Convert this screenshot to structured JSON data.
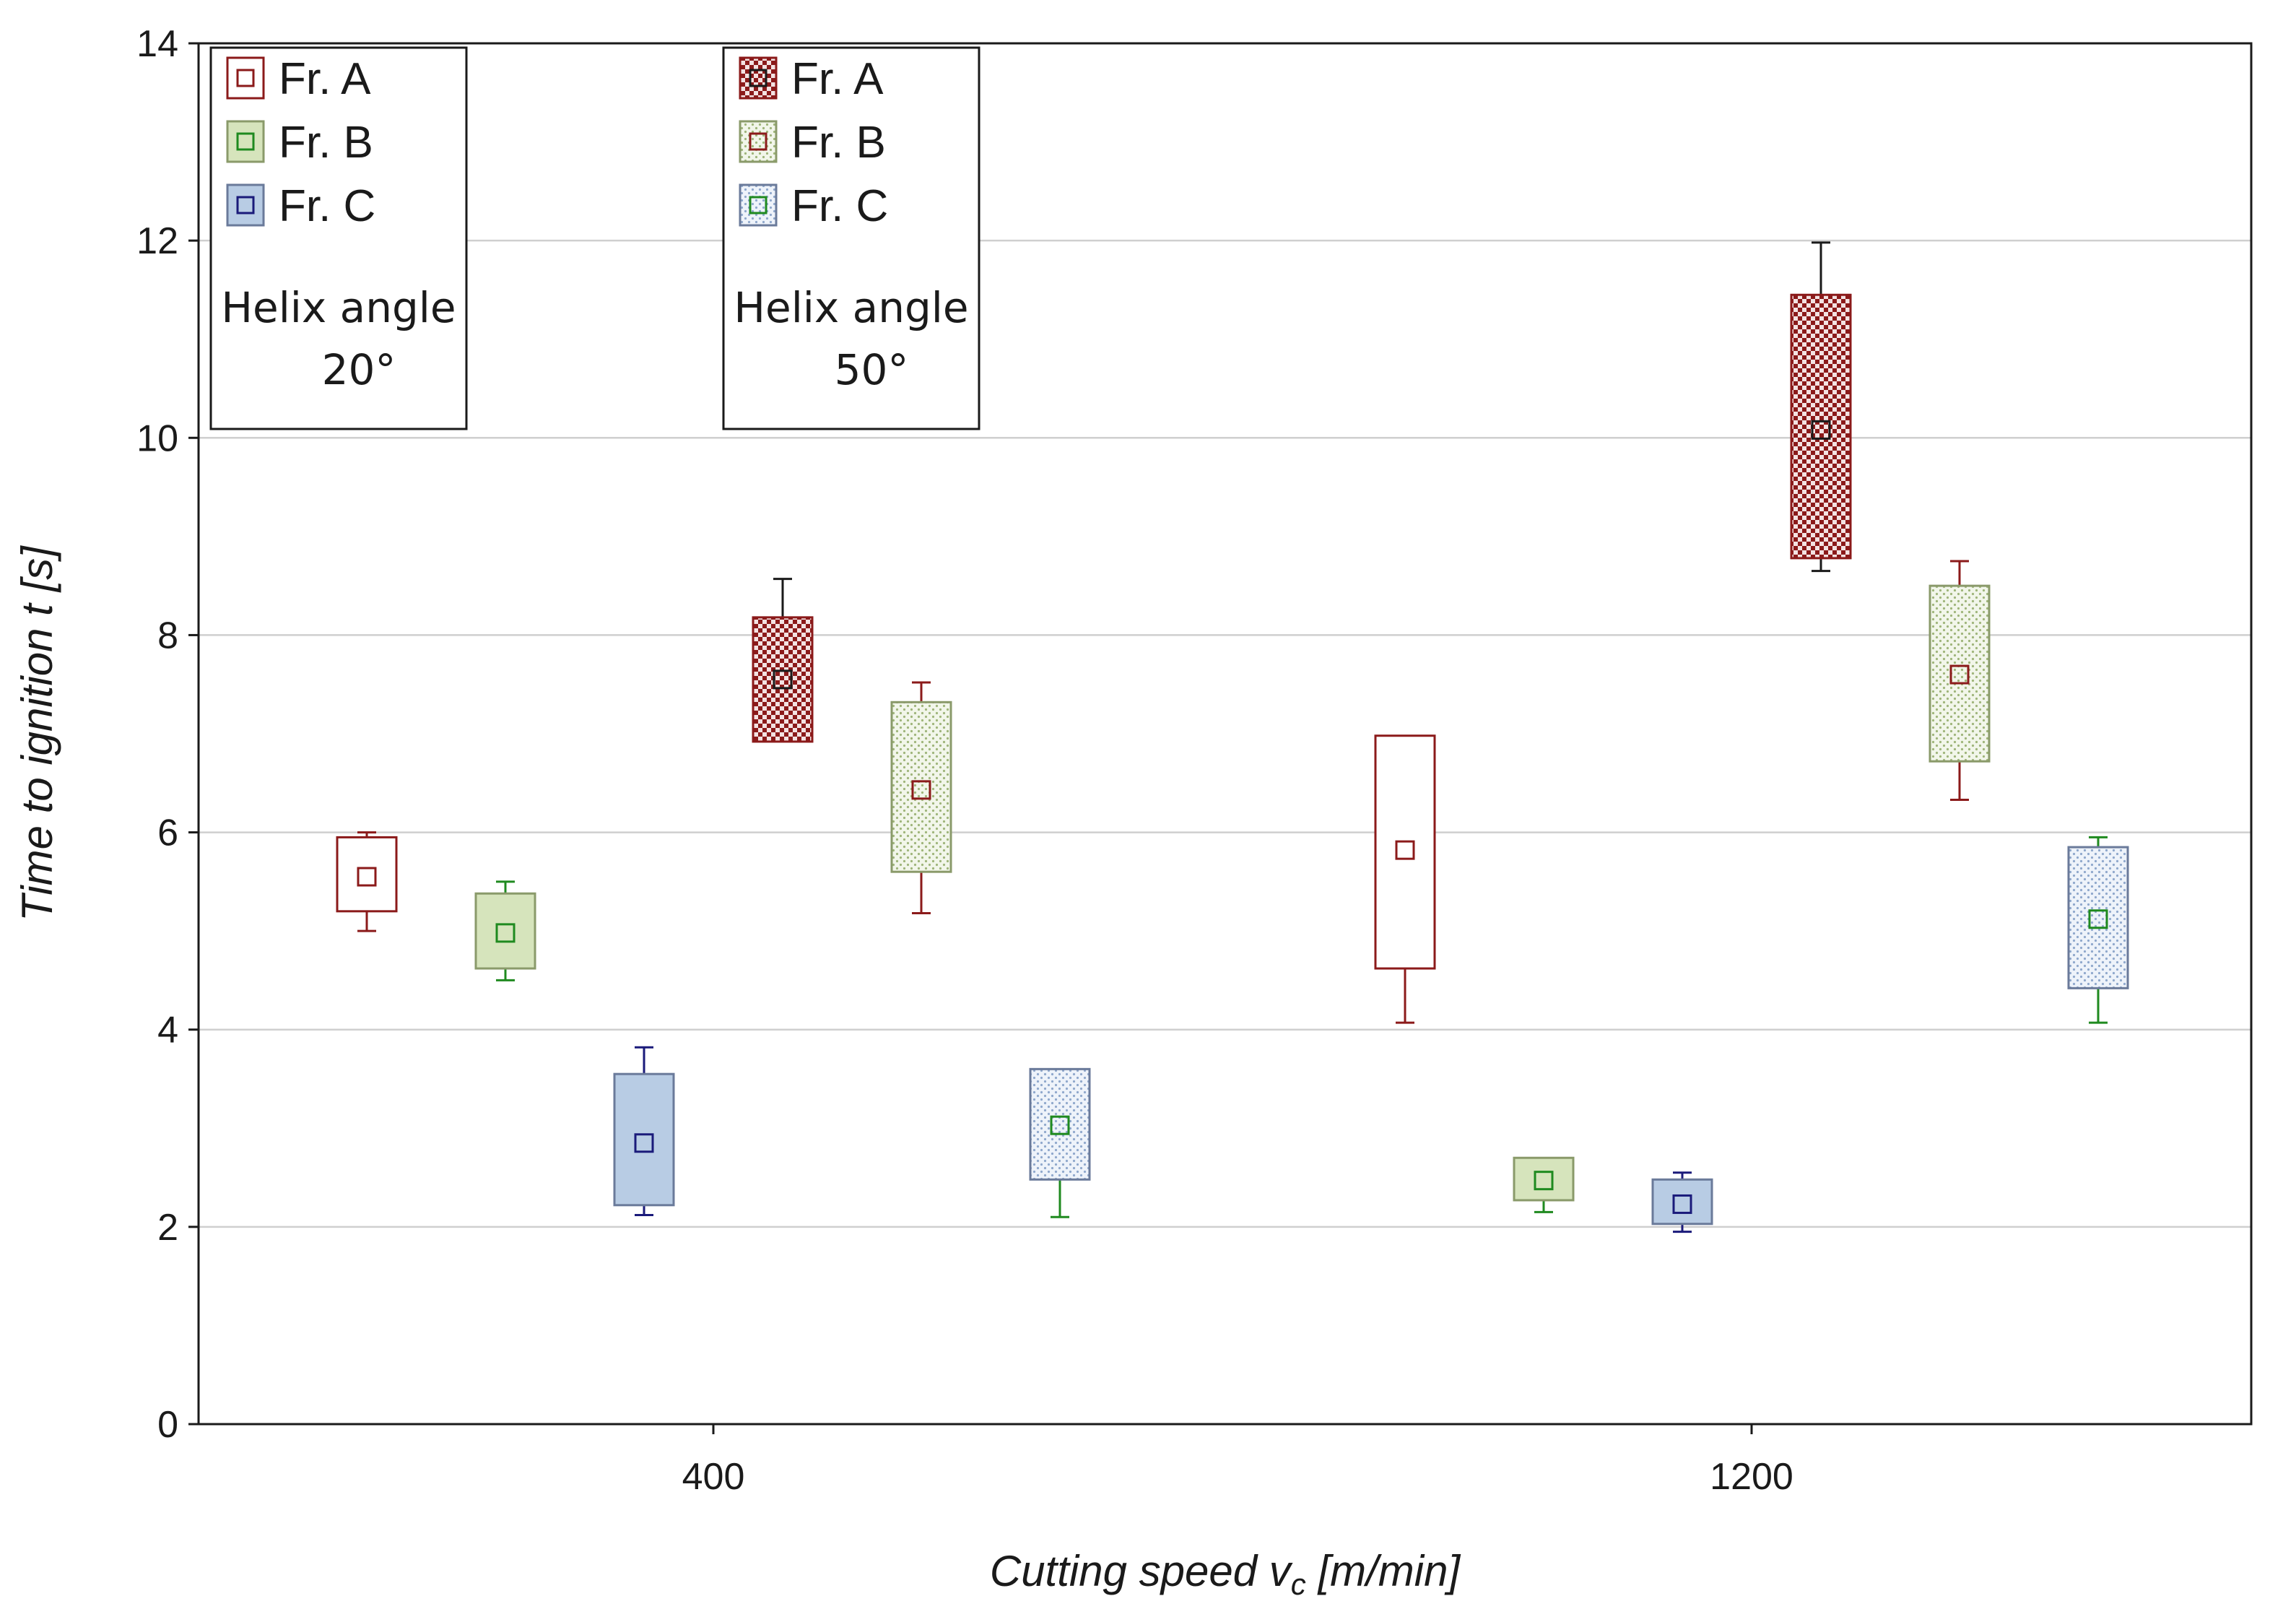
{
  "chart_data": {
    "type": "box",
    "xlabel_main": "Cutting speed v",
    "xlabel_sub": "c",
    "xlabel_unit": " [m/min]",
    "ylabel": "Time to ignition t [s]",
    "ylim": [
      0,
      14
    ],
    "yticks": [
      "0",
      "2",
      "4",
      "6",
      "8",
      "10",
      "12",
      "14"
    ],
    "categories": [
      "400",
      "1200"
    ],
    "grid": true,
    "colors": {
      "A": "#8b1a1a",
      "B": "#1f8a1f",
      "C": "#1a1a7a",
      "fill_B": "#d6e4bc",
      "fill_C": "#b8cce4",
      "box_B": "#8a9a6a",
      "box_C": "#6a7a9a"
    },
    "series": [
      {
        "name": "Fr. A",
        "helix": "20°",
        "pattern": "empty",
        "box_color": "A",
        "mark_color": "A",
        "x_index": 0,
        "offset": -2.5,
        "min": 5.0,
        "q1": 5.2,
        "mean": 5.55,
        "q3": 5.95,
        "max": 6.0
      },
      {
        "name": "Fr. B",
        "helix": "20°",
        "pattern": "solidB",
        "box_color": "box_B",
        "mark_color": "B",
        "x_index": 0,
        "offset": -1.5,
        "min": 4.5,
        "q1": 4.62,
        "mean": 4.98,
        "q3": 5.38,
        "max": 5.5
      },
      {
        "name": "Fr. C",
        "helix": "20°",
        "pattern": "solidC",
        "box_color": "box_C",
        "mark_color": "C",
        "x_index": 0,
        "offset": -0.5,
        "min": 2.12,
        "q1": 2.22,
        "mean": 2.85,
        "q3": 3.55,
        "max": 3.82
      },
      {
        "name": "Fr. A",
        "helix": "50°",
        "pattern": "checkA",
        "box_color": "A",
        "mark_color": "dark",
        "x_index": 0,
        "offset": 0.5,
        "min": 6.92,
        "q1": 6.92,
        "mean": 7.55,
        "q3": 8.18,
        "max": 8.57
      },
      {
        "name": "Fr. B",
        "helix": "50°",
        "pattern": "dotB",
        "box_color": "box_B",
        "mark_color": "A",
        "x_index": 0,
        "offset": 1.5,
        "min": 5.18,
        "q1": 5.6,
        "mean": 6.43,
        "q3": 7.32,
        "max": 7.52
      },
      {
        "name": "Fr. C",
        "helix": "50°",
        "pattern": "dotC",
        "box_color": "box_C",
        "mark_color": "B",
        "x_index": 0,
        "offset": 2.5,
        "min": 2.1,
        "q1": 2.48,
        "mean": 3.03,
        "q3": 3.6,
        "max": 3.6
      },
      {
        "name": "Fr. A",
        "helix": "20°",
        "pattern": "empty",
        "box_color": "A",
        "mark_color": "A",
        "x_index": 1,
        "offset": -2.5,
        "min": 4.07,
        "q1": 4.62,
        "mean": 5.82,
        "q3": 6.98,
        "max": 6.98
      },
      {
        "name": "Fr. B",
        "helix": "20°",
        "pattern": "solidB",
        "box_color": "box_B",
        "mark_color": "B",
        "x_index": 1,
        "offset": -1.5,
        "min": 2.15,
        "q1": 2.27,
        "mean": 2.47,
        "q3": 2.7,
        "max": 2.7
      },
      {
        "name": "Fr. C",
        "helix": "20°",
        "pattern": "solidC",
        "box_color": "box_C",
        "mark_color": "C",
        "x_index": 1,
        "offset": -0.5,
        "min": 1.95,
        "q1": 2.03,
        "mean": 2.23,
        "q3": 2.48,
        "max": 2.55
      },
      {
        "name": "Fr. A",
        "helix": "50°",
        "pattern": "checkA",
        "box_color": "A",
        "mark_color": "dark",
        "x_index": 1,
        "offset": 0.5,
        "min": 8.65,
        "q1": 8.78,
        "mean": 10.08,
        "q3": 11.45,
        "max": 11.98
      },
      {
        "name": "Fr. B",
        "helix": "50°",
        "pattern": "dotB",
        "box_color": "box_B",
        "mark_color": "A",
        "x_index": 1,
        "offset": 1.5,
        "min": 6.33,
        "q1": 6.72,
        "mean": 7.6,
        "q3": 8.5,
        "max": 8.75
      },
      {
        "name": "Fr. C",
        "helix": "50°",
        "pattern": "dotC",
        "box_color": "box_C",
        "mark_color": "B",
        "x_index": 1,
        "offset": 2.5,
        "min": 4.07,
        "q1": 4.42,
        "mean": 5.12,
        "q3": 5.85,
        "max": 5.95
      }
    ],
    "legends": [
      {
        "items": [
          {
            "label": "Fr. A",
            "pattern": "empty",
            "box_color": "A",
            "mark_color": "A"
          },
          {
            "label": "Fr. B",
            "pattern": "solidB",
            "box_color": "box_B",
            "mark_color": "B"
          },
          {
            "label": "Fr. C",
            "pattern": "solidC",
            "box_color": "box_C",
            "mark_color": "C"
          }
        ],
        "title": "Helix angle",
        "value": "20°"
      },
      {
        "items": [
          {
            "label": "Fr. A",
            "pattern": "checkA",
            "box_color": "A",
            "mark_color": "dark"
          },
          {
            "label": "Fr. B",
            "pattern": "dotB",
            "box_color": "box_B",
            "mark_color": "A"
          },
          {
            "label": "Fr. C",
            "pattern": "dotC",
            "box_color": "box_C",
            "mark_color": "B"
          }
        ],
        "title": "Helix angle",
        "value": "50°"
      }
    ]
  }
}
